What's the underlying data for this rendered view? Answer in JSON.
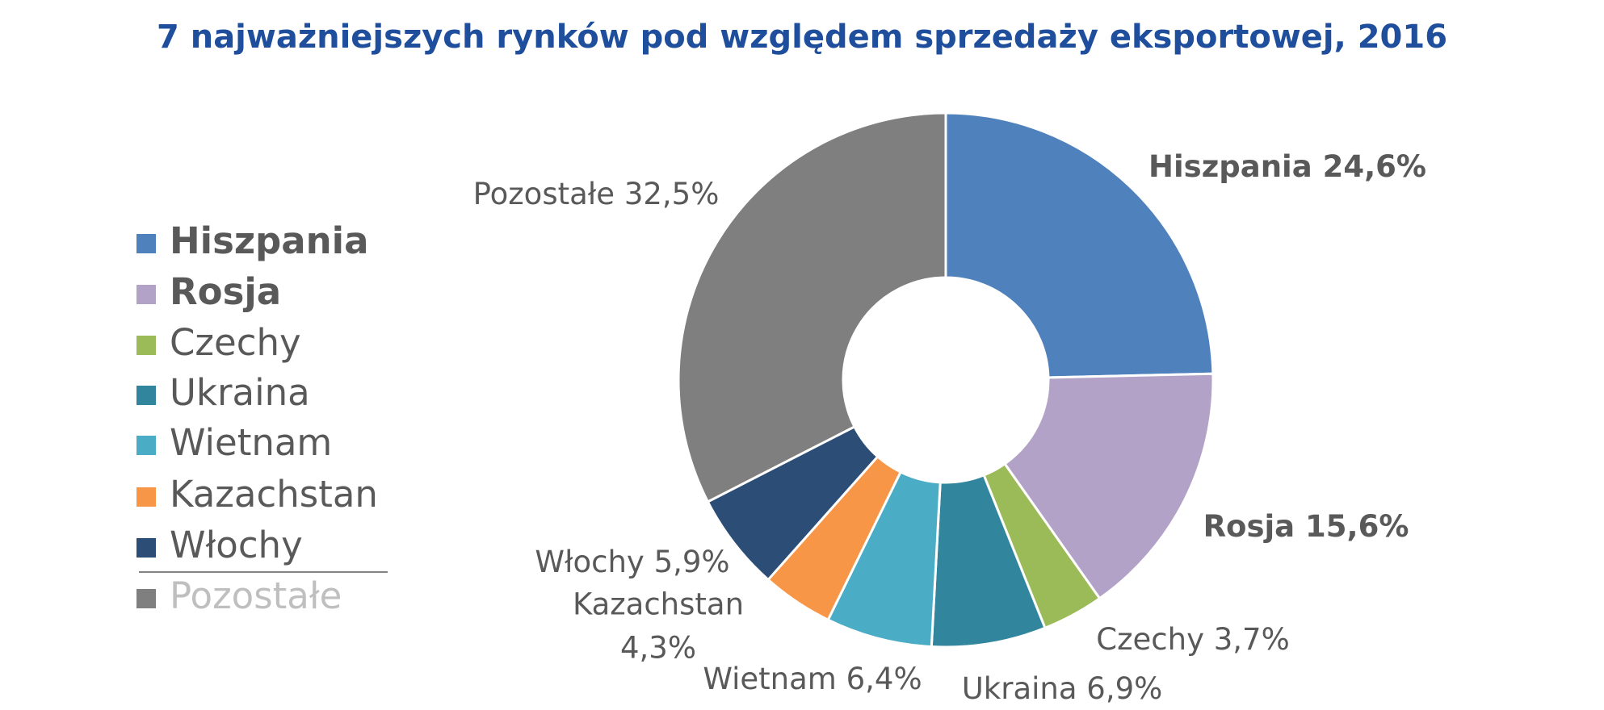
{
  "chart_data": {
    "type": "pie",
    "title": "7 najważniejszych rynków pod względem sprzedaży eksportowej, 2016",
    "categories": [
      "Hiszpania",
      "Rosja",
      "Czechy",
      "Ukraina",
      "Wietnam",
      "Kazachstan",
      "Włochy",
      "Pozostałe"
    ],
    "values": [
      24.6,
      15.6,
      3.7,
      6.9,
      6.4,
      4.3,
      5.9,
      32.5
    ],
    "value_labels": [
      "24,6%",
      "15,6%",
      "3,7%",
      "6,9%",
      "6,4%",
      "4,3%",
      "5,9%",
      "32,5%"
    ],
    "colors": [
      "#4f81bd",
      "#b2a2c7",
      "#9bbb59",
      "#31859c",
      "#4bacc6",
      "#f79646",
      "#2c4d75",
      "#7f7f7f"
    ],
    "legend": "left"
  }
}
